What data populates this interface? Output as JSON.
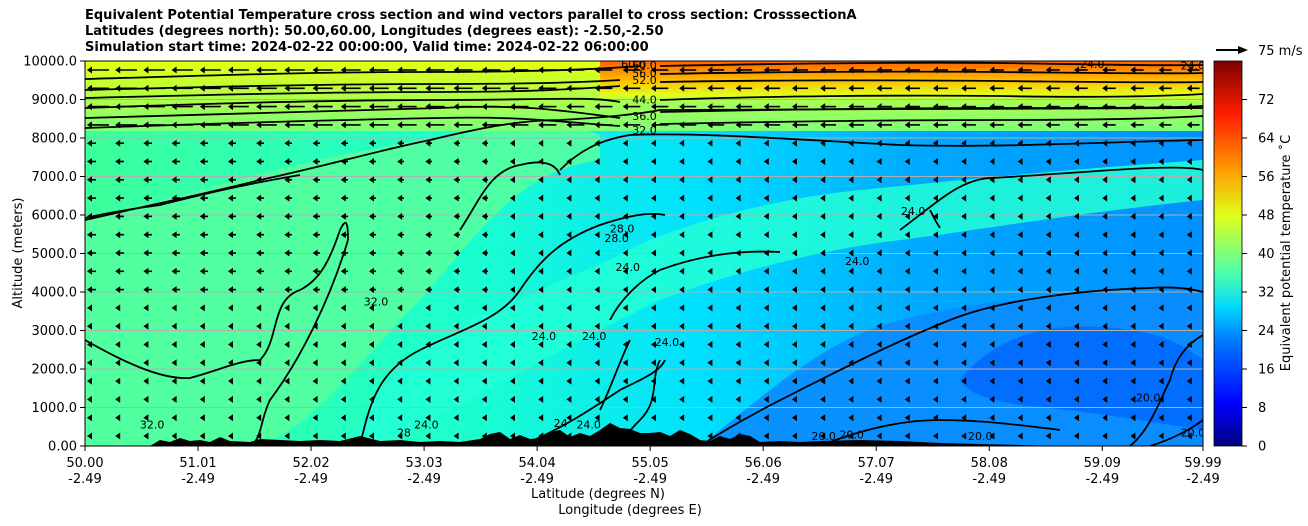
{
  "chart_data": {
    "type": "heatmap",
    "title_lines": [
      "Equivalent Potential Temperature cross section and wind vectors parallel to cross section: CrosssectionA",
      "Latitudes (degrees north): 50.00,60.00, Longitudes (degrees east): -2.50,-2.50",
      "Simulation start time: 2024-02-22 00:00:00, Valid time: 2024-02-22 06:00:00"
    ],
    "xlabel_lines": [
      "Latitude (degrees N)",
      "Longitude (degrees E)"
    ],
    "ylabel": "Altitude (meters)",
    "x_ticks_lat": [
      "50.00",
      "51.01",
      "52.02",
      "53.03",
      "54.04",
      "55.05",
      "56.06",
      "57.07",
      "58.08",
      "59.09",
      "59.99"
    ],
    "x_ticks_lon": [
      "-2.49",
      "-2.49",
      "-2.49",
      "-2.49",
      "-2.49",
      "-2.49",
      "-2.49",
      "-2.49",
      "-2.49",
      "-2.49",
      "-2.49"
    ],
    "y_ticks": [
      "0.00",
      "1000.0",
      "2000.0",
      "3000.0",
      "4000.0",
      "5000.0",
      "6000.0",
      "7000.0",
      "8000.0",
      "9000.0",
      "10000.0"
    ],
    "ylim": [
      0,
      10000
    ],
    "grid": "horizontal",
    "colorbar": {
      "label": "Equivalent potential temperature ˚C",
      "range": [
        0,
        80
      ],
      "ticks": [
        "0",
        "8",
        "16",
        "24",
        "32",
        "40",
        "48",
        "56",
        "64",
        "72"
      ]
    },
    "quiver_key": "75 m/s",
    "contour_labels": [
      {
        "text": "60.0",
        "lat": 54.9,
        "alt": 9820
      },
      {
        "text": "60.0",
        "lat": 55.0,
        "alt": 9790
      },
      {
        "text": "56.0",
        "lat": 55.0,
        "alt": 9580
      },
      {
        "text": "52.0",
        "lat": 55.0,
        "alt": 9400
      },
      {
        "text": "44.0",
        "lat": 55.0,
        "alt": 8900
      },
      {
        "text": "36.0",
        "lat": 55.0,
        "alt": 8470
      },
      {
        "text": "32.0",
        "lat": 55.0,
        "alt": 8100
      },
      {
        "text": "24.0",
        "lat": 59.0,
        "alt": 9820
      },
      {
        "text": "24.0",
        "lat": 59.9,
        "alt": 9780
      },
      {
        "text": "28.0",
        "lat": 54.8,
        "alt": 5540
      },
      {
        "text": "28.0",
        "lat": 54.75,
        "alt": 5300
      },
      {
        "text": "24.0",
        "lat": 54.85,
        "alt": 4550
      },
      {
        "text": "24.0",
        "lat": 57.4,
        "alt": 6000
      },
      {
        "text": "24.0",
        "lat": 56.9,
        "alt": 4700
      },
      {
        "text": "32.0",
        "lat": 52.6,
        "alt": 3650
      },
      {
        "text": "24.0",
        "lat": 54.1,
        "alt": 2750
      },
      {
        "text": "24.0",
        "lat": 54.55,
        "alt": 2750
      },
      {
        "text": "24.0",
        "lat": 55.2,
        "alt": 2600
      },
      {
        "text": "32.0",
        "lat": 50.6,
        "alt": 450
      },
      {
        "text": "24.0",
        "lat": 53.05,
        "alt": 450
      },
      {
        "text": "28",
        "lat": 52.85,
        "alt": 250
      },
      {
        "text": "24",
        "lat": 54.25,
        "alt": 500
      },
      {
        "text": "24.0",
        "lat": 54.5,
        "alt": 450
      },
      {
        "text": "20.0",
        "lat": 56.6,
        "alt": 150
      },
      {
        "text": "20.0",
        "lat": 56.85,
        "alt": 200
      },
      {
        "text": "20.0",
        "lat": 58.0,
        "alt": 150
      },
      {
        "text": "20.0",
        "lat": 59.5,
        "alt": 1150
      },
      {
        "text": "20.0",
        "lat": 59.9,
        "alt": 250
      }
    ]
  }
}
